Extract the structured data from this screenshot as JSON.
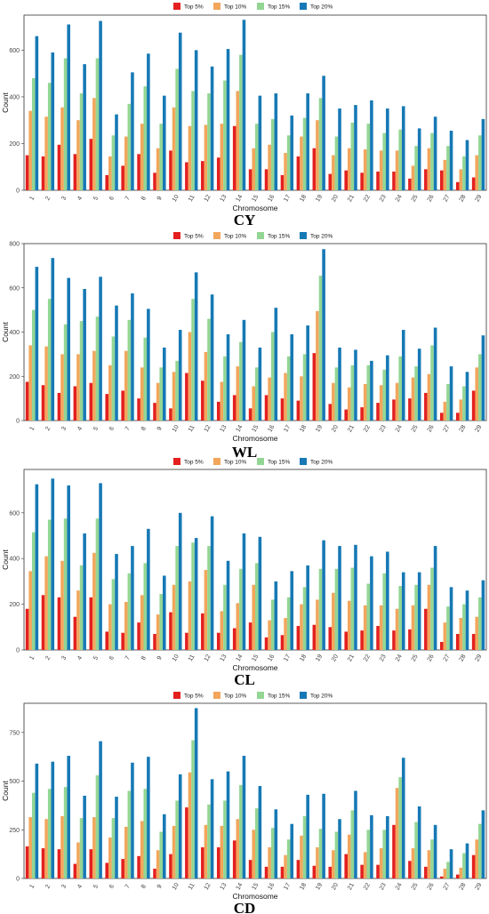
{
  "legend": [
    "Top 5%",
    "Top 10%",
    "Top 15%",
    "Top 20%"
  ],
  "colors": {
    "Top 5%": "#e3201f",
    "Top 10%": "#f2a65c",
    "Top 15%": "#93d694",
    "Top 20%": "#1679b5"
  },
  "chart_data": [
    {
      "type": "bar",
      "title": "CY",
      "xlabel": "Chromosome",
      "ylabel": "Count",
      "ylim": [
        0,
        750
      ],
      "yticks": [
        0,
        200,
        400,
        600
      ],
      "categories": [
        "1",
        "2",
        "3",
        "4",
        "5",
        "6",
        "7",
        "8",
        "9",
        "10",
        "11",
        "12",
        "13",
        "14",
        "15",
        "16",
        "17",
        "18",
        "19",
        "20",
        "21",
        "22",
        "23",
        "24",
        "25",
        "26",
        "27",
        "28",
        "29"
      ],
      "series": [
        {
          "name": "Top 5%",
          "values": [
            150,
            145,
            195,
            155,
            220,
            65,
            105,
            155,
            75,
            170,
            120,
            125,
            140,
            275,
            90,
            90,
            65,
            145,
            180,
            70,
            85,
            75,
            80,
            80,
            50,
            90,
            85,
            35,
            55
          ]
        },
        {
          "name": "Top 10%",
          "values": [
            340,
            315,
            355,
            300,
            395,
            145,
            230,
            285,
            180,
            355,
            275,
            280,
            285,
            425,
            180,
            195,
            160,
            230,
            300,
            150,
            180,
            175,
            170,
            170,
            105,
            180,
            130,
            90,
            150
          ]
        },
        {
          "name": "Top 15%",
          "values": [
            480,
            460,
            565,
            415,
            565,
            235,
            370,
            445,
            285,
            520,
            425,
            415,
            470,
            580,
            285,
            305,
            235,
            310,
            395,
            230,
            290,
            285,
            245,
            260,
            190,
            245,
            190,
            145,
            235
          ]
        },
        {
          "name": "Top 20%",
          "values": [
            660,
            590,
            710,
            540,
            725,
            325,
            505,
            585,
            405,
            675,
            600,
            530,
            605,
            730,
            405,
            415,
            320,
            415,
            490,
            350,
            365,
            385,
            350,
            360,
            265,
            315,
            255,
            215,
            305
          ]
        }
      ]
    },
    {
      "type": "bar",
      "title": "WL",
      "xlabel": "Chromosome",
      "ylabel": "Count",
      "ylim": [
        0,
        800
      ],
      "yticks": [
        0,
        200,
        400,
        600,
        800
      ],
      "categories": [
        "1",
        "2",
        "3",
        "4",
        "5",
        "6",
        "7",
        "8",
        "9",
        "10",
        "11",
        "12",
        "13",
        "14",
        "15",
        "16",
        "17",
        "18",
        "19",
        "20",
        "21",
        "22",
        "23",
        "24",
        "25",
        "26",
        "27",
        "28",
        "29"
      ],
      "series": [
        {
          "name": "Top 5%",
          "values": [
            175,
            160,
            125,
            155,
            170,
            120,
            135,
            100,
            80,
            55,
            215,
            180,
            85,
            115,
            55,
            115,
            100,
            90,
            305,
            75,
            50,
            60,
            80,
            95,
            100,
            125,
            35,
            35,
            135
          ]
        },
        {
          "name": "Top 10%",
          "values": [
            340,
            335,
            300,
            300,
            315,
            250,
            315,
            240,
            170,
            220,
            400,
            310,
            175,
            245,
            155,
            195,
            215,
            200,
            495,
            170,
            150,
            165,
            160,
            170,
            195,
            210,
            85,
            95,
            240
          ]
        },
        {
          "name": "Top 15%",
          "values": [
            500,
            550,
            435,
            450,
            470,
            380,
            455,
            375,
            240,
            270,
            550,
            460,
            290,
            355,
            240,
            400,
            290,
            300,
            655,
            240,
            250,
            250,
            230,
            290,
            245,
            340,
            165,
            155,
            300
          ]
        },
        {
          "name": "Top 20%",
          "values": [
            695,
            735,
            645,
            595,
            650,
            520,
            575,
            505,
            330,
            410,
            670,
            570,
            390,
            455,
            330,
            510,
            390,
            430,
            775,
            330,
            320,
            270,
            295,
            410,
            325,
            420,
            245,
            220,
            385
          ]
        }
      ]
    },
    {
      "type": "bar",
      "title": "CL",
      "xlabel": "Chromosome",
      "ylabel": "Count",
      "ylim": [
        0,
        790
      ],
      "yticks": [
        0,
        200,
        400,
        600
      ],
      "categories": [
        "1",
        "2",
        "3",
        "4",
        "5",
        "6",
        "7",
        "8",
        "9",
        "10",
        "11",
        "12",
        "13",
        "14",
        "15",
        "16",
        "17",
        "18",
        "19",
        "20",
        "21",
        "22",
        "23",
        "24",
        "25",
        "26",
        "27",
        "28",
        "29"
      ],
      "series": [
        {
          "name": "Top 5%",
          "values": [
            180,
            240,
            230,
            145,
            230,
            80,
            75,
            120,
            70,
            165,
            75,
            160,
            75,
            95,
            120,
            55,
            65,
            105,
            110,
            100,
            80,
            85,
            105,
            85,
            90,
            180,
            35,
            70,
            70
          ]
        },
        {
          "name": "Top 10%",
          "values": [
            345,
            410,
            390,
            260,
            425,
            200,
            210,
            240,
            155,
            285,
            300,
            350,
            170,
            205,
            285,
            130,
            140,
            200,
            220,
            250,
            215,
            195,
            195,
            180,
            195,
            285,
            120,
            140,
            145
          ]
        },
        {
          "name": "Top 15%",
          "values": [
            515,
            570,
            575,
            370,
            575,
            310,
            335,
            380,
            245,
            455,
            470,
            455,
            285,
            355,
            380,
            220,
            230,
            275,
            355,
            355,
            360,
            290,
            335,
            280,
            285,
            360,
            190,
            200,
            230
          ]
        },
        {
          "name": "Top 20%",
          "values": [
            725,
            750,
            720,
            510,
            730,
            420,
            455,
            530,
            325,
            600,
            490,
            585,
            390,
            510,
            495,
            300,
            345,
            370,
            480,
            455,
            460,
            410,
            430,
            340,
            340,
            455,
            275,
            260,
            305
          ]
        }
      ]
    },
    {
      "type": "bar",
      "title": "CD",
      "xlabel": "Chromosome",
      "ylabel": "Count",
      "ylim": [
        0,
        900
      ],
      "yticks": [
        0,
        250,
        500,
        750
      ],
      "categories": [
        "1",
        "2",
        "3",
        "4",
        "5",
        "6",
        "7",
        "8",
        "9",
        "10",
        "11",
        "12",
        "13",
        "14",
        "15",
        "16",
        "17",
        "18",
        "19",
        "20",
        "21",
        "22",
        "23",
        "24",
        "25",
        "26",
        "27",
        "28",
        "29"
      ],
      "series": [
        {
          "name": "Top 5%",
          "values": [
            165,
            155,
            150,
            75,
            150,
            80,
            100,
            115,
            50,
            125,
            365,
            160,
            160,
            195,
            95,
            60,
            60,
            95,
            65,
            60,
            125,
            70,
            70,
            275,
            90,
            60,
            10,
            20,
            120
          ]
        },
        {
          "name": "Top 10%",
          "values": [
            315,
            305,
            320,
            185,
            315,
            210,
            265,
            295,
            145,
            270,
            545,
            275,
            270,
            305,
            250,
            160,
            120,
            220,
            160,
            145,
            225,
            135,
            155,
            465,
            155,
            145,
            50,
            55,
            200
          ]
        },
        {
          "name": "Top 15%",
          "values": [
            440,
            460,
            470,
            310,
            530,
            310,
            450,
            460,
            240,
            400,
            710,
            380,
            400,
            480,
            360,
            260,
            200,
            320,
            255,
            240,
            350,
            250,
            250,
            520,
            290,
            200,
            85,
            130,
            280
          ]
        },
        {
          "name": "Top 20%",
          "values": [
            590,
            600,
            630,
            425,
            705,
            420,
            595,
            625,
            330,
            535,
            875,
            510,
            550,
            630,
            475,
            355,
            280,
            430,
            435,
            305,
            450,
            325,
            320,
            620,
            370,
            275,
            150,
            180,
            350
          ]
        }
      ]
    }
  ]
}
